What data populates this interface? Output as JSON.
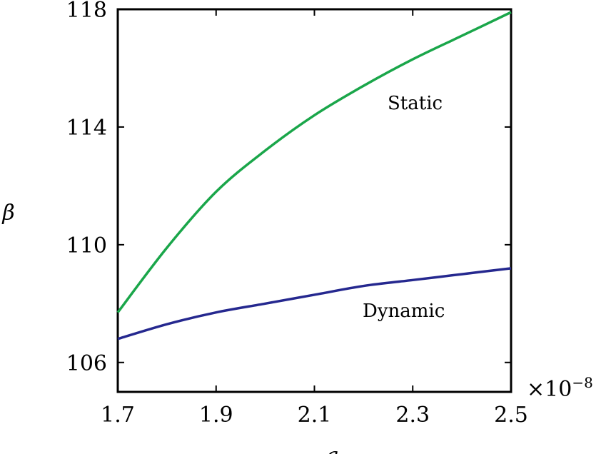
{
  "chart_data": {
    "type": "line",
    "xlabel": "a",
    "ylabel": "β",
    "x_multiplier": {
      "base": "×10",
      "exponent": "−8"
    },
    "xlim": [
      1.7,
      2.5
    ],
    "ylim": [
      105,
      118
    ],
    "x_ticks": [
      1.7,
      1.9,
      2.1,
      2.3,
      2.5
    ],
    "x_tick_labels": [
      "1.7",
      "1.9",
      "2.1",
      "2.3",
      "2.5"
    ],
    "y_ticks": [
      106,
      110,
      114,
      118
    ],
    "y_tick_labels": [
      "106",
      "110",
      "114",
      "118"
    ],
    "grid": false,
    "series": [
      {
        "name": "Static",
        "color": "#1aa64a",
        "x": [
          1.7,
          1.8,
          1.9,
          2.0,
          2.1,
          2.2,
          2.3,
          2.4,
          2.5
        ],
        "y": [
          107.7,
          109.9,
          111.8,
          113.2,
          114.4,
          115.4,
          116.3,
          117.1,
          117.9
        ]
      },
      {
        "name": "Dynamic",
        "color": "#25288f",
        "x": [
          1.7,
          1.8,
          1.9,
          2.0,
          2.1,
          2.2,
          2.3,
          2.4,
          2.5
        ],
        "y": [
          106.8,
          107.3,
          107.7,
          108.0,
          108.3,
          108.6,
          108.8,
          109.0,
          109.2
        ]
      }
    ],
    "annotations": [
      {
        "text": "Static",
        "series": "Static"
      },
      {
        "text": "Dynamic",
        "series": "Dynamic"
      }
    ]
  }
}
